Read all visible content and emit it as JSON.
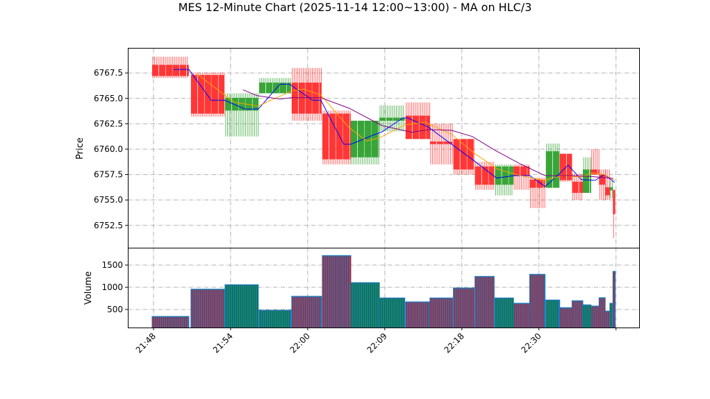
{
  "chart_data": {
    "type": "candlestick",
    "title": "MES 12-Minute Chart (2025-11-14 12:00~13:00) - MA on HLC/3",
    "price_panel": {
      "ylabel": "Price",
      "ylim": [
        6750.3,
        6769.9
      ],
      "yticks": [
        6752.5,
        6755.0,
        6757.5,
        6760.0,
        6762.5,
        6765.0,
        6767.5
      ],
      "ytick_labels": [
        "6752.5",
        "6755.0",
        "6757.5",
        "6760.0",
        "6762.5",
        "6765.0",
        "6767.5"
      ],
      "grid": true
    },
    "volume_panel": {
      "ylabel": "Volume",
      "ylim": [
        94,
        1890
      ],
      "yticks": [
        500,
        1000,
        1500
      ],
      "ytick_labels": [
        "500",
        "1000",
        "1500"
      ],
      "grid": true
    },
    "x_axis": {
      "xlim": [
        -3.33,
        63.0
      ],
      "ticks": [
        0,
        10,
        20,
        30,
        40,
        50,
        60
      ],
      "tick_labels": [
        "21:48",
        "21:54",
        "22:00",
        "22:09",
        "22:18",
        "22:30",
        ""
      ]
    },
    "colors": {
      "up": "#2ca02c",
      "down": "#ff2a2a",
      "volume": "#1f77b4",
      "ma_fast": "#0000ff",
      "ma_mid": "#ffa500",
      "ma_slow": "#800080",
      "grid": "#b0b0b0"
    },
    "bars": [
      {
        "x0": -0.18,
        "x1": 4.59,
        "open": 6768.3,
        "high": 6769.1,
        "low": 6767.0,
        "close": 6767.2,
        "volume": 344
      },
      {
        "x0": 4.86,
        "x1": 9.19,
        "open": 6767.3,
        "high": 6767.55,
        "low": 6763.2,
        "close": 6763.5,
        "volume": 958
      },
      {
        "x0": 9.28,
        "x1": 13.6,
        "open": 6763.8,
        "high": 6765.5,
        "low": 6761.25,
        "close": 6765.05,
        "volume": 1058
      },
      {
        "x0": 13.7,
        "x1": 17.84,
        "open": 6765.5,
        "high": 6767.0,
        "low": 6765.5,
        "close": 6766.55,
        "volume": 484
      },
      {
        "x0": 17.93,
        "x1": 21.8,
        "open": 6766.55,
        "high": 6768.0,
        "low": 6762.8,
        "close": 6763.5,
        "volume": 797
      },
      {
        "x0": 21.9,
        "x1": 25.6,
        "open": 6763.5,
        "high": 6763.8,
        "low": 6758.5,
        "close": 6759.0,
        "volume": 1714
      },
      {
        "x0": 25.6,
        "x1": 29.3,
        "open": 6759.2,
        "high": 6762.8,
        "low": 6758.5,
        "close": 6762.8,
        "volume": 1105
      },
      {
        "x0": 29.3,
        "x1": 32.6,
        "open": 6762.8,
        "high": 6764.3,
        "low": 6761.75,
        "close": 6763.1,
        "volume": 760
      },
      {
        "x0": 32.7,
        "x1": 35.86,
        "open": 6763.3,
        "high": 6764.6,
        "low": 6761.0,
        "close": 6761.0,
        "volume": 672
      },
      {
        "x0": 35.86,
        "x1": 38.8,
        "open": 6760.75,
        "high": 6762.5,
        "low": 6758.5,
        "close": 6760.5,
        "volume": 760
      },
      {
        "x0": 38.9,
        "x1": 41.6,
        "open": 6761.0,
        "high": 6761.0,
        "low": 6757.5,
        "close": 6758.0,
        "volume": 984
      },
      {
        "x0": 41.7,
        "x1": 44.2,
        "open": 6758.3,
        "high": 6758.75,
        "low": 6756.0,
        "close": 6756.5,
        "volume": 1245
      },
      {
        "x0": 44.3,
        "x1": 46.7,
        "open": 6756.5,
        "high": 6758.5,
        "low": 6755.45,
        "close": 6758.3,
        "volume": 760
      },
      {
        "x0": 46.7,
        "x1": 48.8,
        "open": 6758.3,
        "high": 6758.5,
        "low": 6756.0,
        "close": 6757.4,
        "volume": 641
      },
      {
        "x0": 48.8,
        "x1": 50.8,
        "open": 6757.0,
        "high": 6757.2,
        "low": 6754.2,
        "close": 6756.2,
        "volume": 1292
      },
      {
        "x0": 50.9,
        "x1": 52.7,
        "open": 6756.2,
        "high": 6760.55,
        "low": 6756.2,
        "close": 6759.8,
        "volume": 714
      },
      {
        "x0": 52.7,
        "x1": 54.3,
        "open": 6759.55,
        "high": 6759.55,
        "low": 6756.8,
        "close": 6756.95,
        "volume": 542
      },
      {
        "x0": 54.3,
        "x1": 55.7,
        "open": 6756.8,
        "high": 6757.6,
        "low": 6755.0,
        "close": 6755.7,
        "volume": 698
      },
      {
        "x0": 55.7,
        "x1": 56.76,
        "open": 6755.7,
        "high": 6759.2,
        "low": 6755.7,
        "close": 6758.0,
        "volume": 605
      },
      {
        "x0": 56.76,
        "x1": 57.8,
        "open": 6758.0,
        "high": 6760.0,
        "low": 6757.5,
        "close": 6757.5,
        "volume": 578
      },
      {
        "x0": 57.8,
        "x1": 58.6,
        "open": 6757.5,
        "high": 6758.0,
        "low": 6755.0,
        "close": 6756.5,
        "volume": 766
      },
      {
        "x0": 58.6,
        "x1": 59.2,
        "open": 6756.25,
        "high": 6758.0,
        "low": 6755.0,
        "close": 6755.45,
        "volume": 464
      },
      {
        "x0": 59.2,
        "x1": 59.6,
        "open": 6755.95,
        "high": 6756.9,
        "low": 6755.15,
        "close": 6756.25,
        "volume": 641
      },
      {
        "x0": 59.6,
        "x1": 59.9,
        "open": 6756.0,
        "high": 6756.0,
        "low": 6751.25,
        "close": 6753.6,
        "volume": 1359
      }
    ],
    "ma_lines": [
      {
        "name": "ma-fast",
        "color": "#0000ff",
        "points": [
          [
            2.61,
            6767.84
          ],
          [
            4.59,
            6767.84
          ],
          [
            7.48,
            6764.82
          ],
          [
            9.19,
            6764.82
          ],
          [
            11.89,
            6763.95
          ],
          [
            13.6,
            6763.95
          ],
          [
            16.4,
            6766.39
          ],
          [
            17.66,
            6766.39
          ],
          [
            20.63,
            6764.82
          ],
          [
            21.71,
            6764.82
          ],
          [
            24.68,
            6760.48
          ],
          [
            25.59,
            6760.48
          ],
          [
            28.65,
            6761.43
          ],
          [
            29.64,
            6761.7
          ],
          [
            32.34,
            6763.07
          ],
          [
            32.97,
            6763.07
          ],
          [
            35.68,
            6762.16
          ],
          [
            41.62,
            6758.84
          ],
          [
            44.5,
            6757.16
          ],
          [
            46.76,
            6757.39
          ],
          [
            48.83,
            6757.39
          ],
          [
            50.81,
            6756.32
          ],
          [
            52.43,
            6757.41
          ],
          [
            53.78,
            6758.43
          ],
          [
            55.5,
            6757.0
          ],
          [
            57.3,
            6756.93
          ],
          [
            58.47,
            6757.5
          ],
          [
            59.82,
            6756.73
          ]
        ]
      },
      {
        "name": "ma-mid",
        "color": "#ffa500",
        "points": [
          [
            5.59,
            6767.43
          ],
          [
            10.45,
            6764.62
          ],
          [
            13.6,
            6764.25
          ],
          [
            17.93,
            6765.73
          ],
          [
            19.46,
            6765.91
          ],
          [
            21.71,
            6765.34
          ],
          [
            25.32,
            6762.16
          ],
          [
            27.66,
            6760.8
          ],
          [
            29.19,
            6761.07
          ],
          [
            32.61,
            6762.39
          ],
          [
            35.23,
            6762.66
          ],
          [
            38.65,
            6761.48
          ],
          [
            41.62,
            6759.59
          ],
          [
            44.68,
            6758.02
          ],
          [
            47.66,
            6757.39
          ],
          [
            50.63,
            6756.93
          ],
          [
            53.06,
            6757.39
          ],
          [
            55.5,
            6757.27
          ],
          [
            56.94,
            6757.66
          ],
          [
            58.47,
            6757.5
          ],
          [
            59.82,
            6756.93
          ]
        ]
      },
      {
        "name": "ma-slow",
        "color": "#800080",
        "points": [
          [
            11.62,
            6765.84
          ],
          [
            13.42,
            6765.27
          ],
          [
            16.4,
            6764.93
          ],
          [
            17.93,
            6765.07
          ],
          [
            21.71,
            6765.07
          ],
          [
            25.41,
            6764.02
          ],
          [
            29.64,
            6762.32
          ],
          [
            33.51,
            6761.66
          ],
          [
            35.68,
            6761.93
          ],
          [
            38.65,
            6761.86
          ],
          [
            41.35,
            6761.25
          ],
          [
            44.32,
            6759.88
          ],
          [
            47.66,
            6758.52
          ],
          [
            50.81,
            6757.39
          ],
          [
            53.69,
            6757.39
          ],
          [
            56.67,
            6757.32
          ],
          [
            59.64,
            6757.12
          ]
        ]
      }
    ]
  }
}
